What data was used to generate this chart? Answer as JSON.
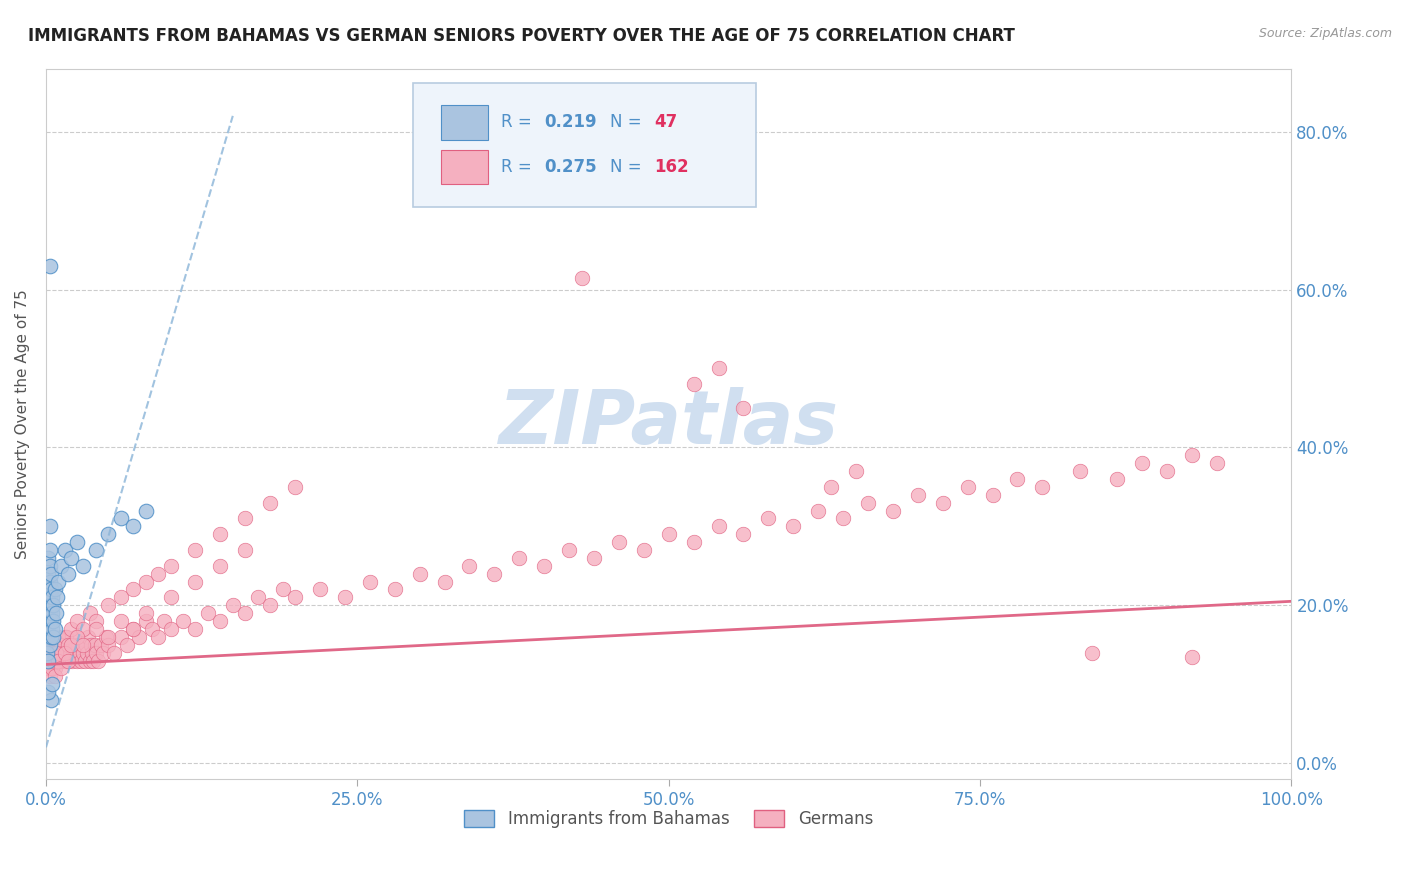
{
  "title": "IMMIGRANTS FROM BAHAMAS VS GERMAN SENIORS POVERTY OVER THE AGE OF 75 CORRELATION CHART",
  "source": "Source: ZipAtlas.com",
  "ylabel": "Seniors Poverty Over the Age of 75",
  "xlim": [
    0.0,
    1.0
  ],
  "ylim": [
    -0.02,
    0.88
  ],
  "yticks": [
    0.0,
    0.2,
    0.4,
    0.6,
    0.8
  ],
  "xticks": [
    0.0,
    0.25,
    0.5,
    0.75,
    1.0
  ],
  "xtick_labels": [
    "0.0%",
    "25.0%",
    "50.0%",
    "75.0%",
    "100.0%"
  ],
  "ytick_labels": [
    "0.0%",
    "20.0%",
    "40.0%",
    "60.0%",
    "80.0%"
  ],
  "series1_label": "Immigrants from Bahamas",
  "series1_color": "#aac4e0",
  "series1_edge_color": "#5090c8",
  "series2_label": "Germans",
  "series2_color": "#f5b0c0",
  "series2_edge_color": "#e06080",
  "trend1_color": "#8ab4d8",
  "trend2_color": "#e06888",
  "watermark": "ZIPatlas",
  "watermark_color": "#d0dff0",
  "background_color": "#ffffff",
  "tick_color": "#5090c8",
  "title_color": "#222222",
  "title_fontsize": 12,
  "legend_R_color": "#5090c8",
  "legend_N_color": "#e03060",
  "legend_box_color": "#e8f0f8",
  "legend_border_color": "#b0c8e0",
  "series1_x": [
    0.001,
    0.001,
    0.001,
    0.001,
    0.002,
    0.002,
    0.002,
    0.002,
    0.002,
    0.003,
    0.003,
    0.003,
    0.003,
    0.003,
    0.003,
    0.004,
    0.004,
    0.004,
    0.004,
    0.004,
    0.005,
    0.005,
    0.005,
    0.006,
    0.006,
    0.006,
    0.007,
    0.007,
    0.008,
    0.009,
    0.01,
    0.012,
    0.015,
    0.018,
    0.02,
    0.025,
    0.03,
    0.04,
    0.05,
    0.06,
    0.07,
    0.08,
    0.003,
    0.003,
    0.004,
    0.002,
    0.005
  ],
  "series1_y": [
    0.18,
    0.16,
    0.22,
    0.14,
    0.2,
    0.17,
    0.24,
    0.13,
    0.26,
    0.19,
    0.15,
    0.23,
    0.21,
    0.25,
    0.27,
    0.18,
    0.16,
    0.22,
    0.2,
    0.24,
    0.17,
    0.19,
    0.21,
    0.16,
    0.2,
    0.18,
    0.22,
    0.17,
    0.19,
    0.21,
    0.23,
    0.25,
    0.27,
    0.24,
    0.26,
    0.28,
    0.25,
    0.27,
    0.29,
    0.31,
    0.3,
    0.32,
    0.63,
    0.3,
    0.08,
    0.09,
    0.1
  ],
  "trend1_x0": 0.0,
  "trend1_y0": 0.02,
  "trend1_x1": 0.15,
  "trend1_y1": 0.82,
  "series2_x": [
    0.001,
    0.002,
    0.002,
    0.003,
    0.003,
    0.004,
    0.004,
    0.005,
    0.005,
    0.006,
    0.006,
    0.007,
    0.007,
    0.008,
    0.008,
    0.009,
    0.009,
    0.01,
    0.01,
    0.011,
    0.012,
    0.013,
    0.014,
    0.015,
    0.016,
    0.017,
    0.018,
    0.019,
    0.02,
    0.021,
    0.022,
    0.023,
    0.024,
    0.025,
    0.026,
    0.027,
    0.028,
    0.029,
    0.03,
    0.031,
    0.032,
    0.033,
    0.034,
    0.035,
    0.036,
    0.037,
    0.038,
    0.039,
    0.04,
    0.042,
    0.044,
    0.046,
    0.048,
    0.05,
    0.055,
    0.06,
    0.065,
    0.07,
    0.075,
    0.08,
    0.085,
    0.09,
    0.095,
    0.1,
    0.11,
    0.12,
    0.13,
    0.14,
    0.15,
    0.16,
    0.17,
    0.18,
    0.19,
    0.2,
    0.22,
    0.24,
    0.26,
    0.28,
    0.3,
    0.32,
    0.34,
    0.36,
    0.38,
    0.4,
    0.42,
    0.44,
    0.46,
    0.48,
    0.5,
    0.52,
    0.54,
    0.56,
    0.58,
    0.6,
    0.62,
    0.64,
    0.66,
    0.68,
    0.7,
    0.72,
    0.74,
    0.76,
    0.78,
    0.8,
    0.83,
    0.86,
    0.88,
    0.9,
    0.92,
    0.94,
    0.003,
    0.004,
    0.005,
    0.006,
    0.007,
    0.008,
    0.009,
    0.01,
    0.012,
    0.014,
    0.016,
    0.018,
    0.02,
    0.025,
    0.03,
    0.035,
    0.04,
    0.05,
    0.06,
    0.07,
    0.08,
    0.09,
    0.1,
    0.12,
    0.14,
    0.16,
    0.18,
    0.2,
    0.001,
    0.002,
    0.003,
    0.004,
    0.005,
    0.006,
    0.007,
    0.008,
    0.01,
    0.012,
    0.015,
    0.018,
    0.02,
    0.025,
    0.03,
    0.04,
    0.05,
    0.06,
    0.07,
    0.08,
    0.1,
    0.12,
    0.14,
    0.16
  ],
  "series2_y": [
    0.14,
    0.13,
    0.15,
    0.12,
    0.16,
    0.14,
    0.13,
    0.15,
    0.12,
    0.14,
    0.13,
    0.16,
    0.12,
    0.15,
    0.13,
    0.14,
    0.16,
    0.13,
    0.15,
    0.14,
    0.13,
    0.15,
    0.14,
    0.13,
    0.16,
    0.14,
    0.13,
    0.15,
    0.14,
    0.13,
    0.15,
    0.14,
    0.16,
    0.13,
    0.15,
    0.14,
    0.13,
    0.15,
    0.14,
    0.13,
    0.15,
    0.14,
    0.16,
    0.13,
    0.15,
    0.14,
    0.13,
    0.15,
    0.14,
    0.13,
    0.15,
    0.14,
    0.16,
    0.15,
    0.14,
    0.16,
    0.15,
    0.17,
    0.16,
    0.18,
    0.17,
    0.16,
    0.18,
    0.17,
    0.18,
    0.17,
    0.19,
    0.18,
    0.2,
    0.19,
    0.21,
    0.2,
    0.22,
    0.21,
    0.22,
    0.21,
    0.23,
    0.22,
    0.24,
    0.23,
    0.25,
    0.24,
    0.26,
    0.25,
    0.27,
    0.26,
    0.28,
    0.27,
    0.29,
    0.28,
    0.3,
    0.29,
    0.31,
    0.3,
    0.32,
    0.31,
    0.33,
    0.32,
    0.34,
    0.33,
    0.35,
    0.34,
    0.36,
    0.35,
    0.37,
    0.36,
    0.38,
    0.37,
    0.39,
    0.38,
    0.14,
    0.13,
    0.15,
    0.14,
    0.13,
    0.15,
    0.14,
    0.16,
    0.15,
    0.14,
    0.16,
    0.15,
    0.17,
    0.18,
    0.17,
    0.19,
    0.18,
    0.2,
    0.21,
    0.22,
    0.23,
    0.24,
    0.25,
    0.27,
    0.29,
    0.31,
    0.33,
    0.35,
    0.12,
    0.13,
    0.11,
    0.14,
    0.12,
    0.13,
    0.11,
    0.14,
    0.13,
    0.12,
    0.14,
    0.13,
    0.15,
    0.16,
    0.15,
    0.17,
    0.16,
    0.18,
    0.17,
    0.19,
    0.21,
    0.23,
    0.25,
    0.27
  ],
  "trend2_x0": 0.0,
  "trend2_y0": 0.125,
  "trend2_x1": 1.0,
  "trend2_y1": 0.205,
  "series2_outlier_x": [
    0.43,
    0.52,
    0.54,
    0.56,
    0.63,
    0.65,
    0.84,
    0.92
  ],
  "series2_outlier_y": [
    0.615,
    0.48,
    0.5,
    0.45,
    0.35,
    0.37,
    0.14,
    0.135
  ]
}
